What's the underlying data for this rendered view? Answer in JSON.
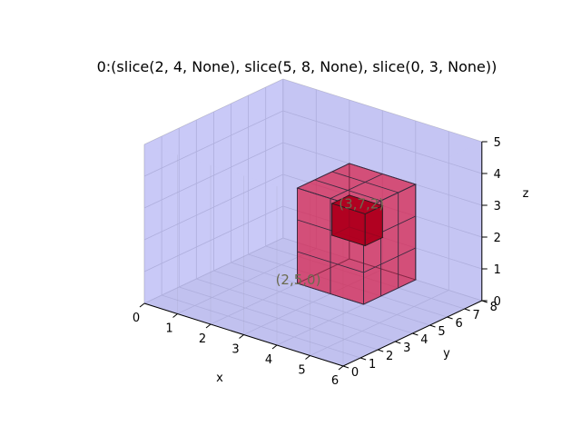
{
  "chart_data": {
    "type": "voxel3d",
    "title": "0:(slice(2, 4, None), slice(5, 8, None), slice(0, 3, None))",
    "xlabel": "x",
    "ylabel": "y",
    "zlabel": "z",
    "xlim": [
      0,
      6
    ],
    "ylim": [
      0,
      8
    ],
    "zlim": [
      0,
      5
    ],
    "xticks": [
      "0",
      "1",
      "2",
      "3",
      "4",
      "5",
      "6"
    ],
    "yticks": [
      "0",
      "1",
      "2",
      "3",
      "4",
      "5",
      "6",
      "7",
      "8"
    ],
    "zticks": [
      "0",
      "1",
      "2",
      "3",
      "4",
      "5"
    ],
    "grid": true,
    "volume": {
      "x": [
        0,
        6
      ],
      "y": [
        0,
        8
      ],
      "z": [
        0,
        5
      ],
      "color": "#8888ff"
    },
    "slice_box": {
      "x": [
        2,
        4
      ],
      "y": [
        5,
        8
      ],
      "z": [
        0,
        3
      ],
      "color": "#dc143c"
    },
    "inner_cube": {
      "x": [
        2,
        3
      ],
      "y": [
        7,
        8
      ],
      "z": [
        1,
        2
      ],
      "color": "#b00020"
    },
    "annotations": [
      {
        "text": "(2,5,0)",
        "x": 2,
        "y": 5,
        "z": 0
      },
      {
        "text": "(3,7,2)",
        "x": 3,
        "y": 7,
        "z": 2
      }
    ]
  }
}
